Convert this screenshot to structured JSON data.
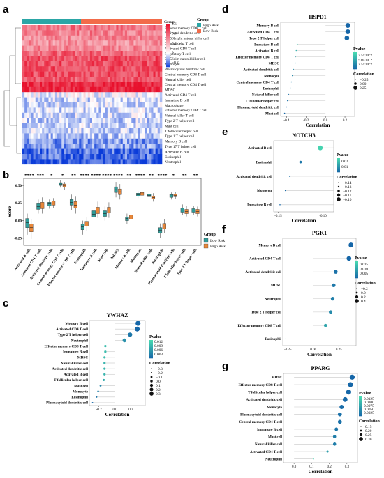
{
  "colors": {
    "group_high": "#2ba6a6",
    "group_low": "#f26b4a",
    "box_low": "#2f9c99",
    "box_high": "#e8873a",
    "heat_high": "#e8112d",
    "heat_low": "#0a3bd9",
    "pval_low": "#1565a8",
    "pval_high": "#48d8b0"
  },
  "panels": {
    "a": "a",
    "b": "b",
    "c": "c",
    "d": "d",
    "e": "e",
    "f": "f",
    "g": "g"
  },
  "chart_data": [
    {
      "panel": "a",
      "type": "heatmap",
      "annotation_title": "Group",
      "legend_title": "Group",
      "groups": [
        "High Risk",
        "Low Risk"
      ],
      "colorbar_ticks": [
        "0.6",
        "0.4",
        "0.2",
        "0",
        "−0.2"
      ],
      "colorbar_range": [
        -0.3,
        0.6
      ],
      "rows": [
        {
          "name": "Effector memory CD8 T cell",
          "level": 0.35
        },
        {
          "name": "Activated dendritic cell",
          "level": 0.32
        },
        {
          "name": "CD56bright natural killer cell",
          "level": 0.3
        },
        {
          "name": "Gamma delta T cell",
          "level": 0.28
        },
        {
          "name": "Activated CD8 T cell",
          "level": 0.3
        },
        {
          "name": "Regulatory T cell",
          "level": 0.4
        },
        {
          "name": "CD56dim natural killer cell",
          "level": 0.45
        },
        {
          "name": "Monocyte",
          "level": 0.45
        },
        {
          "name": "Plasmacytoid dendritic cell",
          "level": 0.45
        },
        {
          "name": "Central memory CD8 T cell",
          "level": 0.45
        },
        {
          "name": "Natural killer cell",
          "level": 0.42
        },
        {
          "name": "Central memory CD4 T cell",
          "level": 0.55
        },
        {
          "name": "MDSC",
          "level": 0.55
        },
        {
          "name": "Activated CD4 T cell",
          "level": 0.0
        },
        {
          "name": "Immature  B cell",
          "level": -0.05
        },
        {
          "name": "Macrophage",
          "level": -0.05
        },
        {
          "name": "Effector memory CD4 T cell",
          "level": -0.05
        },
        {
          "name": "Natural killer T cell",
          "level": -0.05
        },
        {
          "name": "Type 2 T helper cell",
          "level": -0.06
        },
        {
          "name": "Mast cell",
          "level": -0.06
        },
        {
          "name": "T follicular helper cell",
          "level": -0.06
        },
        {
          "name": "Type 1 T helper cell",
          "level": -0.08
        },
        {
          "name": "Memory B cell",
          "level": -0.15
        },
        {
          "name": "Type 17 T helper cell",
          "level": -0.15
        },
        {
          "name": "Activated B cell",
          "level": -0.22
        },
        {
          "name": "Eosinophil",
          "level": -0.22
        },
        {
          "name": "Neutrophil",
          "level": -0.25
        }
      ]
    },
    {
      "panel": "b",
      "type": "box",
      "ylabel": "Score",
      "legend_title": "Group",
      "series": [
        {
          "name": "Low Risk"
        },
        {
          "name": "High Risk"
        }
      ],
      "ylim": [
        -0.35,
        0.6
      ],
      "yticks": [
        -0.25,
        0.0,
        0.25,
        0.5
      ],
      "ytick_labels": [
        "-0.25",
        "0.00",
        "0.25",
        "0.50"
      ],
      "categories": [
        "Activated B cells",
        "Activated CD4 T cells",
        "Activated dendritic cells",
        "Central memory CD4 T cells",
        "Effector memory CD8 T cells",
        "Eosinophils",
        "Immature B cells",
        "Mast cells",
        "MDSCs",
        "Memory B cells",
        "Monocytes",
        "Natural killer cells",
        "Neutrophils",
        "Plasmacytoid dendritic cells",
        "T follicular helper cells",
        "Type 2 T helper cells"
      ],
      "significance": [
        "****",
        "***",
        "*",
        "*",
        "**",
        "****",
        "****",
        "****",
        "****",
        "**",
        "****",
        "**",
        "****",
        "*",
        "**",
        "**"
      ],
      "low_risk": [
        [
          -0.2,
          -0.1,
          -0.03,
          0.03,
          0.1
        ],
        [
          0.1,
          0.16,
          0.2,
          0.24,
          0.3
        ],
        [
          0.17,
          0.21,
          0.24,
          0.26,
          0.3
        ],
        [
          0.47,
          0.5,
          0.52,
          0.54,
          0.57
        ],
        [
          0.15,
          0.22,
          0.26,
          0.3,
          0.37
        ],
        [
          -0.2,
          -0.13,
          -0.09,
          -0.05,
          0.0
        ],
        [
          -0.02,
          0.05,
          0.09,
          0.14,
          0.22
        ],
        [
          0.0,
          0.06,
          0.1,
          0.14,
          0.2
        ],
        [
          0.33,
          0.4,
          0.44,
          0.48,
          0.55
        ],
        [
          -0.05,
          0.0,
          0.03,
          0.05,
          0.1
        ],
        [
          0.32,
          0.35,
          0.37,
          0.39,
          0.42
        ],
        [
          0.3,
          0.34,
          0.36,
          0.38,
          0.42
        ],
        [
          -0.25,
          -0.18,
          -0.14,
          -0.1,
          -0.04
        ],
        [
          0.3,
          0.33,
          0.35,
          0.37,
          0.4
        ],
        [
          0.08,
          0.12,
          0.15,
          0.18,
          0.23
        ],
        [
          0.08,
          0.12,
          0.15,
          0.17,
          0.21
        ]
      ],
      "high_risk": [
        [
          -0.26,
          -0.16,
          -0.1,
          -0.05,
          0.02
        ],
        [
          0.1,
          0.17,
          0.21,
          0.26,
          0.33
        ],
        [
          0.18,
          0.22,
          0.25,
          0.28,
          0.32
        ],
        [
          0.44,
          0.48,
          0.5,
          0.52,
          0.55
        ],
        [
          0.1,
          0.18,
          0.22,
          0.27,
          0.34
        ],
        [
          -0.15,
          -0.08,
          -0.05,
          -0.01,
          0.05
        ],
        [
          0.04,
          0.1,
          0.15,
          0.19,
          0.27
        ],
        [
          0.04,
          0.11,
          0.15,
          0.19,
          0.26
        ],
        [
          0.3,
          0.37,
          0.41,
          0.45,
          0.52
        ],
        [
          -0.02,
          0.02,
          0.05,
          0.08,
          0.12
        ],
        [
          0.33,
          0.36,
          0.38,
          0.4,
          0.43
        ],
        [
          0.27,
          0.31,
          0.33,
          0.35,
          0.39
        ],
        [
          -0.18,
          -0.12,
          -0.08,
          -0.04,
          0.02
        ],
        [
          0.31,
          0.34,
          0.36,
          0.38,
          0.41
        ],
        [
          0.06,
          0.1,
          0.13,
          0.16,
          0.21
        ],
        [
          0.06,
          0.1,
          0.13,
          0.16,
          0.2
        ]
      ]
    },
    {
      "panel": "c",
      "type": "scatter",
      "title": "YWHAZ",
      "xlabel": "Correlation",
      "xlim": [
        -0.32,
        0.38
      ],
      "xticks": [
        -0.2,
        0.0,
        0.2
      ],
      "xtick_labels": [
        "-0.2",
        "0.0",
        "0.2"
      ],
      "pvalue_title": "Pvalue",
      "pvalue_range": [
        0.0,
        0.013
      ],
      "pvalue_ticks": [
        "0.012",
        "0.009",
        "0.006",
        "0.003"
      ],
      "pvalue_tick_values": [
        0.012,
        0.009,
        0.006,
        0.003
      ],
      "size_title": "Correlation",
      "size_legend": [
        "−0.3",
        "−0.2",
        "−0.1",
        "0.0",
        "0.1",
        "0.2",
        "0.3"
      ],
      "size_legend_values": [
        -0.3,
        -0.2,
        -0.1,
        0.0,
        0.1,
        0.2,
        0.3
      ],
      "points": [
        {
          "label": "Memory B cell",
          "x": 0.29,
          "p": 0.0001
        },
        {
          "label": "Activated CD4 T cell",
          "x": 0.28,
          "p": 0.0002
        },
        {
          "label": "Type 2 T helper cell",
          "x": 0.19,
          "p": 0.002
        },
        {
          "label": "Neutrophil",
          "x": 0.12,
          "p": 0.005
        },
        {
          "label": "Effector memory CD8 T cell",
          "x": -0.12,
          "p": 0.01
        },
        {
          "label": "Immature  B cell",
          "x": -0.12,
          "p": 0.01
        },
        {
          "label": "MDSC",
          "x": -0.13,
          "p": 0.01
        },
        {
          "label": "Natural killer cell",
          "x": -0.13,
          "p": 0.009
        },
        {
          "label": "Activated dendritic cell",
          "x": -0.13,
          "p": 0.009
        },
        {
          "label": "Activated B cell",
          "x": -0.13,
          "p": 0.009
        },
        {
          "label": "T follicular helper cell",
          "x": -0.14,
          "p": 0.008
        },
        {
          "label": "Mast cell",
          "x": -0.18,
          "p": 0.004
        },
        {
          "label": "Monocyte",
          "x": -0.21,
          "p": 0.003
        },
        {
          "label": "Eosinophil",
          "x": -0.23,
          "p": 0.002
        },
        {
          "label": "Plasmacytoid dendritic cell",
          "x": -0.28,
          "p": 0.0005
        }
      ]
    },
    {
      "panel": "d",
      "type": "scatter",
      "title": "HSPD1",
      "xlabel": "Correlation",
      "xlim": [
        -0.46,
        0.3
      ],
      "xticks": [
        -0.4,
        -0.2,
        0.0,
        0.2
      ],
      "xtick_labels": [
        "-0.4",
        "-0.2",
        "0.0",
        "0.2"
      ],
      "pvalue_title": "Pvalue",
      "pvalue_range": [
        0.0,
        0.0009
      ],
      "pvalue_ticks": [
        "7.5×10⁻⁴",
        "5.0×10⁻⁴",
        "2.5×10⁻⁴"
      ],
      "pvalue_tick_values": [
        0.00075,
        0.0005,
        0.00025
      ],
      "size_title": "Correlation",
      "size_legend": [
        "−0.25",
        "0.00",
        "0.25"
      ],
      "size_legend_values": [
        -0.25,
        0.0,
        0.25
      ],
      "points": [
        {
          "label": "Memory B cell",
          "x": 0.23,
          "p": 1e-05
        },
        {
          "label": "Activated CD4 T cell",
          "x": 0.23,
          "p": 1e-05
        },
        {
          "label": "Type 2 T helper cell",
          "x": 0.22,
          "p": 2e-05
        },
        {
          "label": "Immature  B cell",
          "x": -0.29,
          "p": 0.0008
        },
        {
          "label": "Activated B cell",
          "x": -0.3,
          "p": 0.0006
        },
        {
          "label": "Effector memory CD8 T cell",
          "x": -0.31,
          "p": 0.0005
        },
        {
          "label": "MDSC",
          "x": -0.31,
          "p": 0.0004
        },
        {
          "label": "Activated dendritic cell",
          "x": -0.33,
          "p": 0.0003
        },
        {
          "label": "Monocyte",
          "x": -0.34,
          "p": 0.0003
        },
        {
          "label": "Central memory CD4 T cell",
          "x": -0.35,
          "p": 0.0002
        },
        {
          "label": "Eosinophil",
          "x": -0.36,
          "p": 0.0002
        },
        {
          "label": "Natural killer cell",
          "x": -0.38,
          "p": 0.0001
        },
        {
          "label": "T follicular helper cell",
          "x": -0.39,
          "p": 0.0001
        },
        {
          "label": "Plasmacytoid dendritic cell",
          "x": -0.4,
          "p": 5e-05
        },
        {
          "label": "Mast cell",
          "x": -0.42,
          "p": 2e-05
        }
      ]
    },
    {
      "panel": "e",
      "type": "scatter",
      "title": "NOTCH3",
      "xlabel": "Correlation",
      "xlim": [
        -0.155,
        -0.088
      ],
      "xticks": [
        -0.15,
        -0.1
      ],
      "xtick_labels": [
        "-0.15",
        "-0.10"
      ],
      "pvalue_title": "Pvalue",
      "pvalue_range": [
        0.0,
        0.025
      ],
      "pvalue_ticks": [
        "0.02",
        "0.01"
      ],
      "pvalue_tick_values": [
        0.02,
        0.01
      ],
      "size_title": "Correlation",
      "size_legend": [
        "−0.14",
        "−0.13",
        "−0.12",
        "−0.11",
        "−0.10"
      ],
      "size_legend_values": [
        -0.14,
        -0.13,
        -0.12,
        -0.11,
        -0.1
      ],
      "points": [
        {
          "label": "Activated B cell",
          "x": -0.103,
          "p": 0.024
        },
        {
          "label": "Eosinophil",
          "x": -0.125,
          "p": 0.004
        },
        {
          "label": "Activated dendritic cell",
          "x": -0.137,
          "p": 0.002
        },
        {
          "label": "Monocyte",
          "x": -0.142,
          "p": 0.001
        },
        {
          "label": "Immature  B cell",
          "x": -0.148,
          "p": 0.0005
        }
      ]
    },
    {
      "panel": "f",
      "type": "scatter",
      "title": "PGK1",
      "xlabel": "Correlation",
      "xlim": [
        -0.3,
        0.42
      ],
      "xticks": [
        -0.25,
        0.0,
        0.25
      ],
      "xtick_labels": [
        "-0.25",
        "0.00",
        "0.25"
      ],
      "pvalue_title": "Pvalue",
      "pvalue_range": [
        0.0,
        0.018
      ],
      "pvalue_ticks": [
        "0.015",
        "0.010",
        "0.005"
      ],
      "pvalue_tick_values": [
        0.015,
        0.01,
        0.005
      ],
      "size_title": "Correlation",
      "size_legend": [
        "−0.2",
        "0.0",
        "0.2",
        "0.4"
      ],
      "size_legend_values": [
        -0.2,
        0.0,
        0.2,
        0.4
      ],
      "points": [
        {
          "label": "Memory B cell",
          "x": 0.37,
          "p": 0.0001
        },
        {
          "label": "Activated CD4 T cell",
          "x": 0.35,
          "p": 0.0003
        },
        {
          "label": "Activated dendritic cell",
          "x": 0.22,
          "p": 0.002
        },
        {
          "label": "MDSC",
          "x": 0.2,
          "p": 0.003
        },
        {
          "label": "Neutrophil",
          "x": 0.19,
          "p": 0.004
        },
        {
          "label": "Type 2 T helper cell",
          "x": 0.17,
          "p": 0.006
        },
        {
          "label": "Effector memory CD8 T cell",
          "x": 0.12,
          "p": 0.01
        },
        {
          "label": "Eosinophil",
          "x": -0.27,
          "p": 0.016
        }
      ]
    },
    {
      "panel": "g",
      "type": "scatter",
      "title": "PPARG",
      "xlabel": "Correlation",
      "xlim": [
        -0.06,
        0.36
      ],
      "xticks": [
        0.0,
        0.1,
        0.2,
        0.3
      ],
      "xtick_labels": [
        "0.0",
        "0.1",
        "0.2",
        "0.3"
      ],
      "pvalue_title": "Pvalue",
      "pvalue_range": [
        0.0,
        0.014
      ],
      "pvalue_ticks": [
        "0.0125",
        "0.0100",
        "0.0075",
        "0.0050",
        "0.0025"
      ],
      "pvalue_tick_values": [
        0.0125,
        0.01,
        0.0075,
        0.005,
        0.0025
      ],
      "size_title": "Correlation",
      "size_legend": [
        "0.15",
        "0.20",
        "0.25",
        "0.30"
      ],
      "size_legend_values": [
        0.15,
        0.2,
        0.25,
        0.3
      ],
      "points": [
        {
          "label": "MDSC",
          "x": 0.33,
          "p": 0.0001
        },
        {
          "label": "Effector memory CD8 T cell",
          "x": 0.32,
          "p": 0.0002
        },
        {
          "label": "T follicular helper cell",
          "x": 0.31,
          "p": 0.0003
        },
        {
          "label": "Activated dendritic cell",
          "x": 0.29,
          "p": 0.0005
        },
        {
          "label": "Monocyte",
          "x": 0.27,
          "p": 0.001
        },
        {
          "label": "Plasmacytoid dendritic cell",
          "x": 0.26,
          "p": 0.0015
        },
        {
          "label": "Central memory CD4 T cell",
          "x": 0.26,
          "p": 0.0015
        },
        {
          "label": "Immature  B cell",
          "x": 0.24,
          "p": 0.002
        },
        {
          "label": "Mast cell",
          "x": 0.23,
          "p": 0.003
        },
        {
          "label": "Natural killer cell",
          "x": 0.23,
          "p": 0.003
        },
        {
          "label": "Activated CD4 T cell",
          "x": 0.19,
          "p": 0.007
        },
        {
          "label": "Neutrophil",
          "x": 0.11,
          "p": 0.013
        }
      ]
    }
  ]
}
